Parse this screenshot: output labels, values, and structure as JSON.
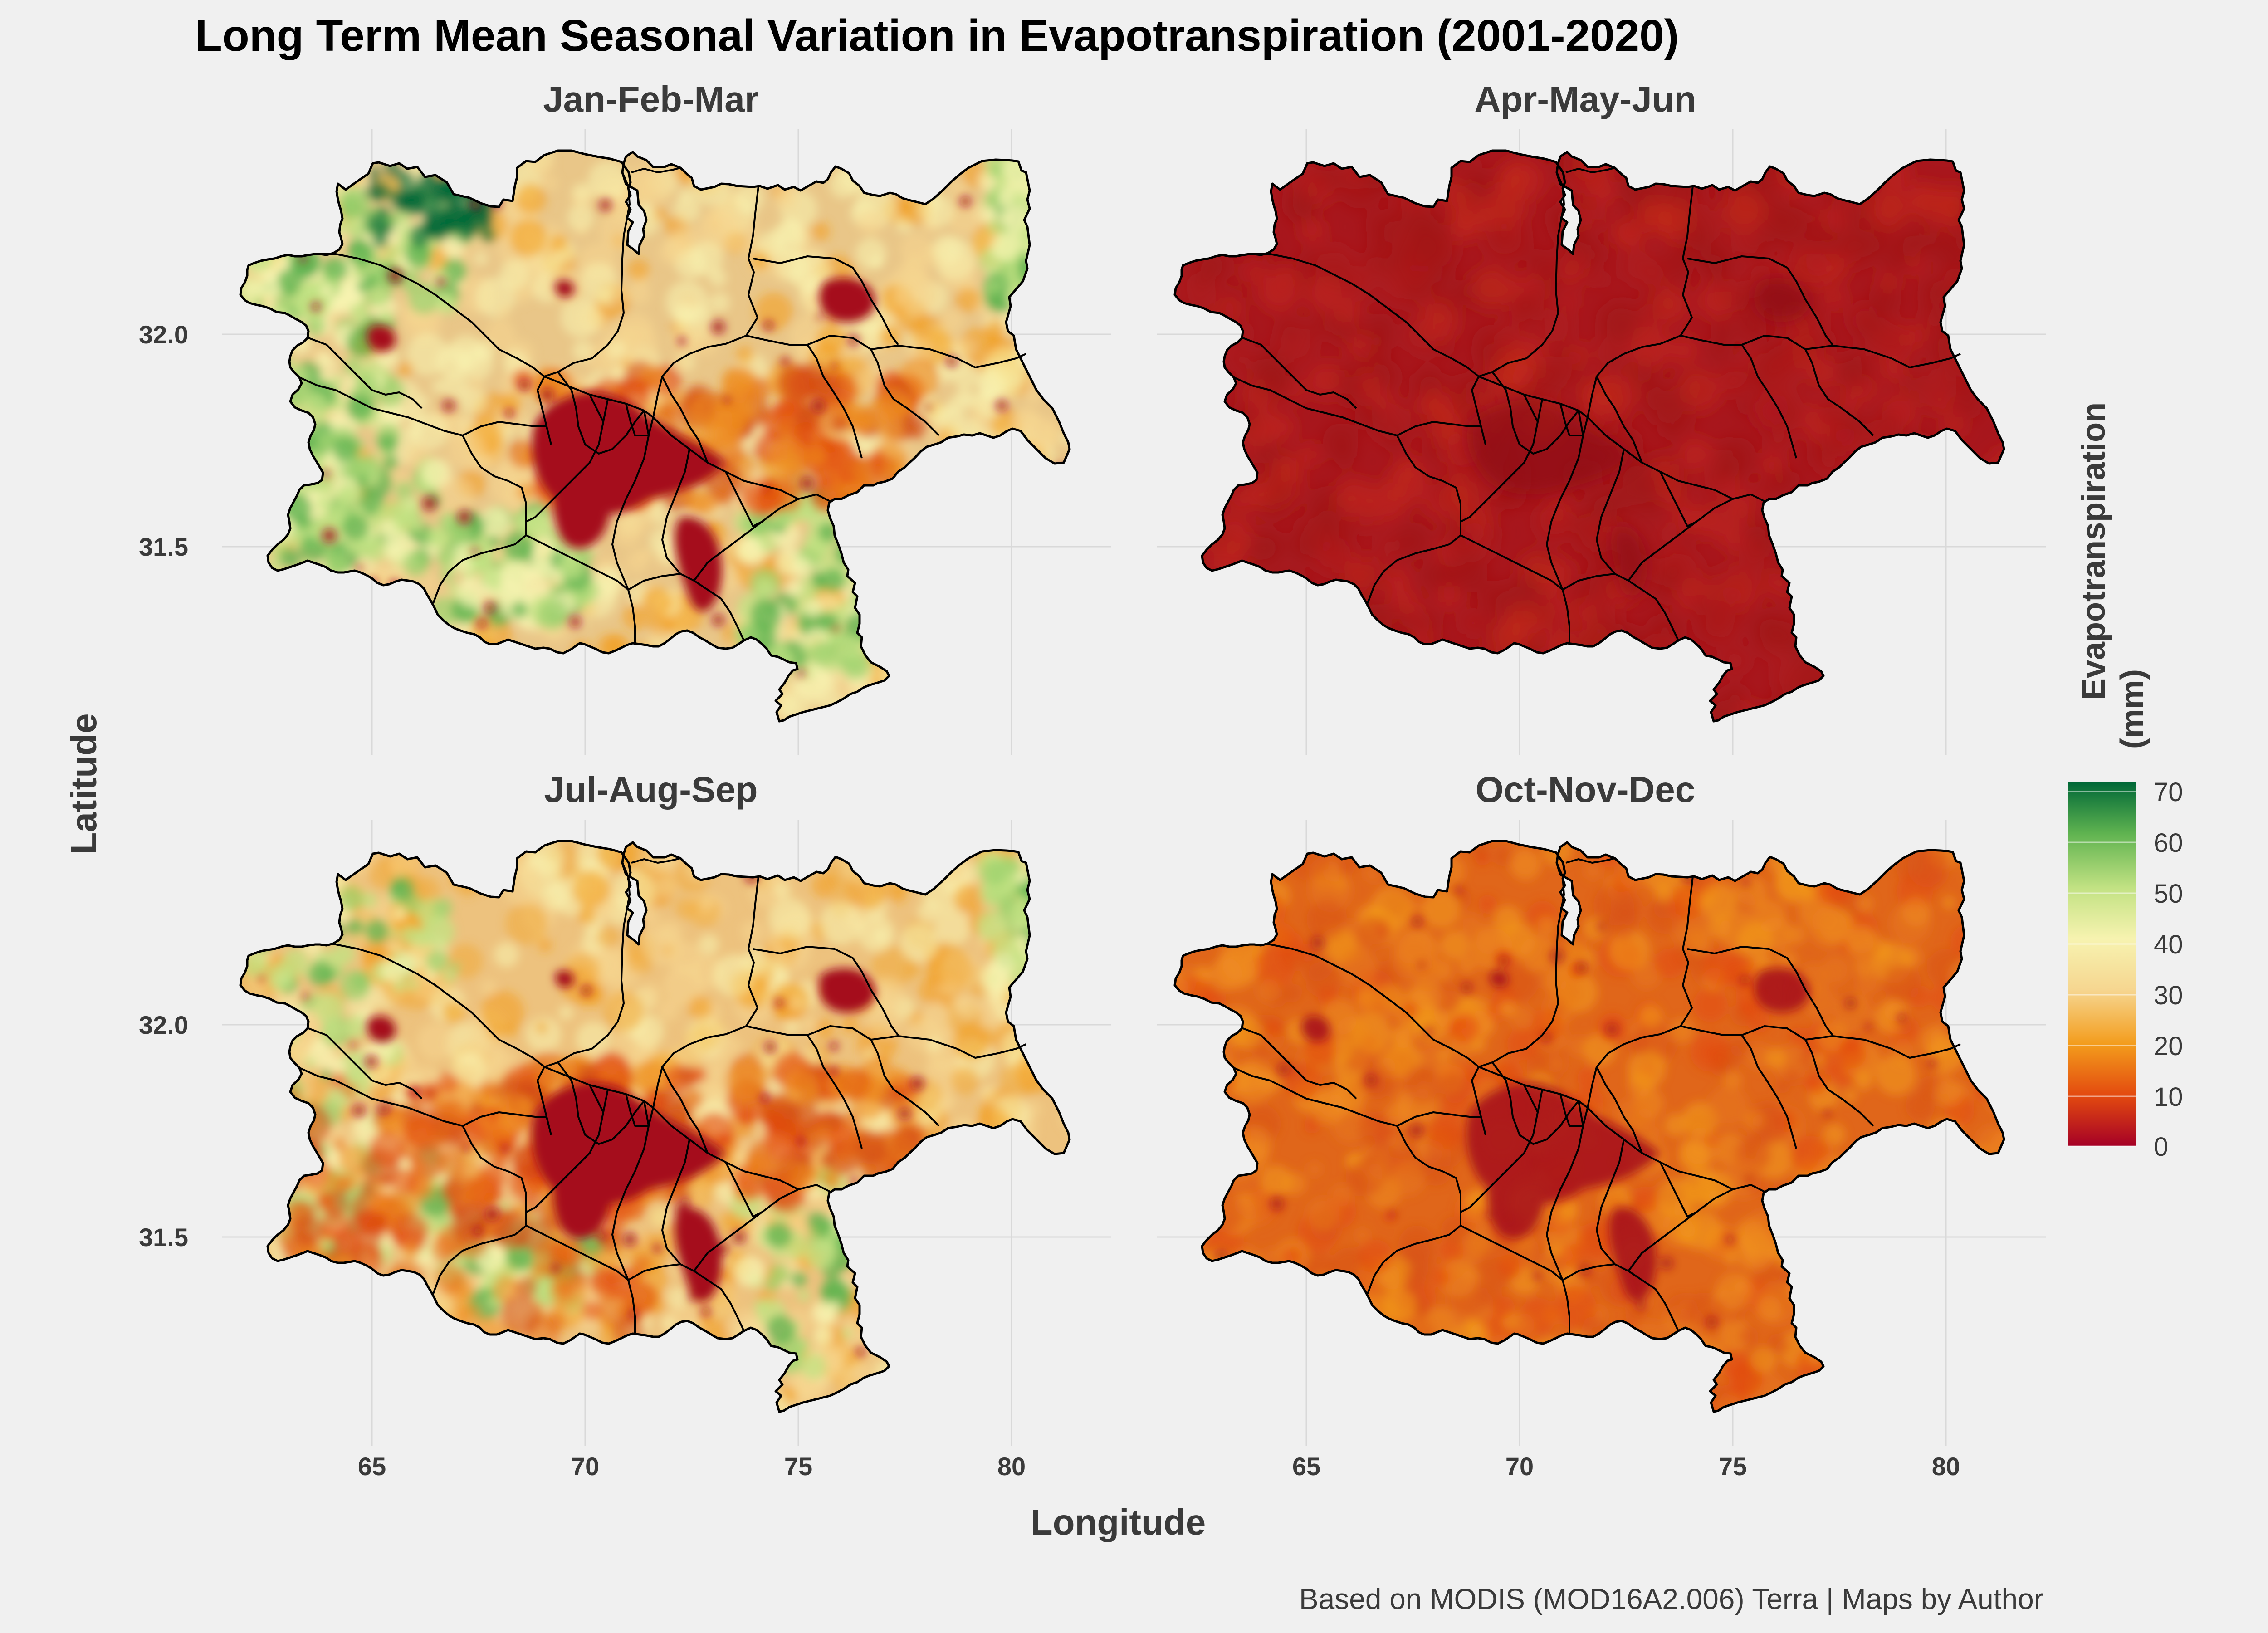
{
  "title": "Long Term Mean Seasonal Variation in Evapotranspiration (2001-2020)",
  "axes": {
    "x_label": "Longitude",
    "y_label": "Latitude",
    "x_ticks": [
      "65",
      "70",
      "75",
      "80"
    ],
    "y_ticks": [
      "31.5",
      "32.0"
    ]
  },
  "panels": [
    {
      "label": "Jan-Feb-Mar",
      "base": "#e9c688",
      "green": 0.75,
      "dark": 1.0
    },
    {
      "label": "Apr-May-Jun",
      "base": "#a8171d",
      "green": 0.0,
      "dark": 0.0
    },
    {
      "label": "Jul-Aug-Sep",
      "base": "#edc27e",
      "green": 0.35,
      "dark": 1.0
    },
    {
      "label": "Oct-Nov-Dec",
      "base": "#e0661a",
      "green": 0.0,
      "dark": 0.85
    }
  ],
  "legend": {
    "title_line1": "Evapotranspiration",
    "title_line2": "(mm)",
    "ticks": [
      "70",
      "60",
      "50",
      "40",
      "30",
      "20",
      "10",
      "0"
    ],
    "colors": {
      "c0": "#a50026",
      "c10": "#e34a0f",
      "c20": "#f39c1c",
      "c30": "#f6d690",
      "c40": "#f7f3b0",
      "c50": "#c2e283",
      "c60": "#5fb350",
      "c70": "#006837"
    }
  },
  "caption": "Based on MODIS (MOD16A2.006) Terra | Maps by Author"
}
